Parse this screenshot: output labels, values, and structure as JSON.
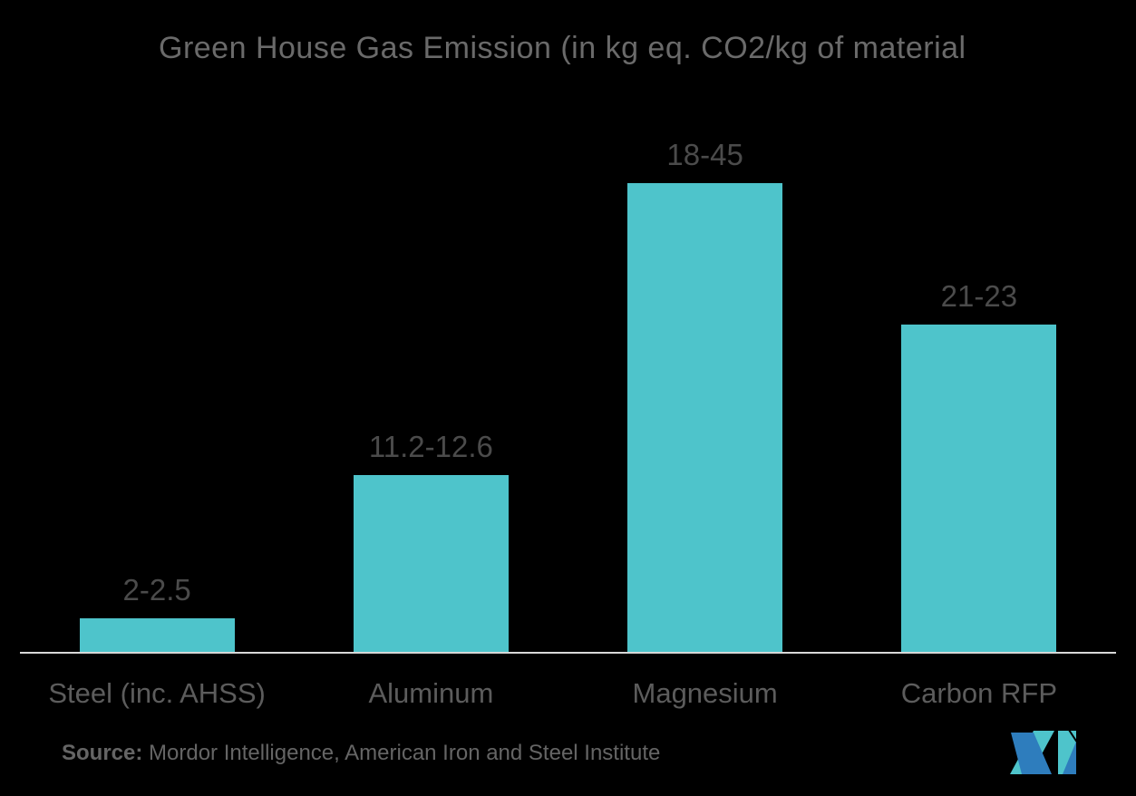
{
  "page": {
    "background": "#000000"
  },
  "chart_data": {
    "type": "bar",
    "title": "Green House Gas Emission (in kg eq. CO2/kg of material",
    "categories": [
      "Steel (inc. AHSS)",
      "Aluminum",
      "Magnesium",
      "Carbon RFP"
    ],
    "value_labels": [
      "2-2.5",
      "11.2-12.6",
      "18-45",
      "21-23"
    ],
    "ranges": [
      [
        2,
        2.5
      ],
      [
        11.2,
        12.6
      ],
      [
        18,
        45
      ],
      [
        21,
        23
      ]
    ],
    "plotted_midpoints": [
      2.25,
      11.9,
      31.5,
      22
    ],
    "ylim": [
      0,
      38.3
    ],
    "grid": false,
    "legend": false,
    "orientation": "vertical",
    "bar_color": "#4EC4CB",
    "value_label_color": "#4b4b4b",
    "category_label_color": "#5c5c5c",
    "axis_line_color": "#D8D8D8",
    "title_color": "#6a6a6a"
  },
  "source": {
    "bold_label": "Source:",
    "text": " Mordor Intelligence, American Iron and Steel Institute"
  },
  "logo": {
    "name": "mordor-intelligence-logo",
    "teal": "#4EC4CB",
    "blue": "#2E7DBD"
  }
}
